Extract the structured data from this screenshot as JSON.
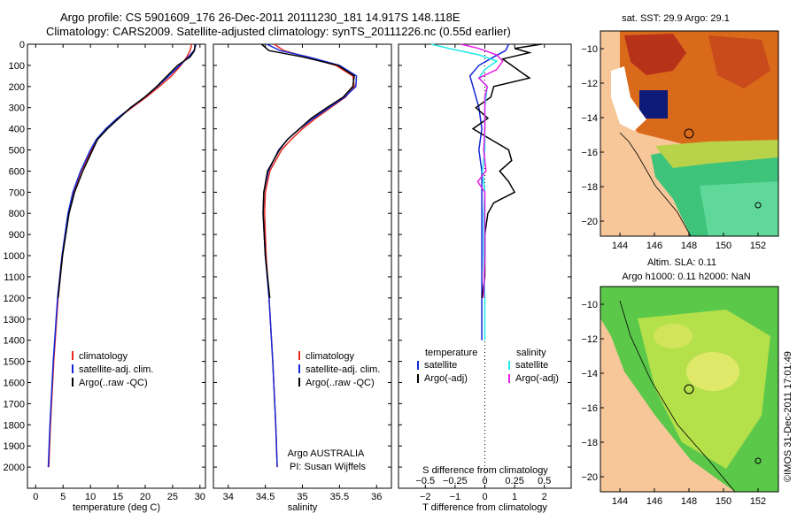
{
  "header": {
    "title_line1": "Argo profile: CS 5901609_176 26-Dec-2011 20111230_181 14.917S 148.118E",
    "title_line2": "Climatology: CARS2009. Satellite-adjusted climatology: synTS_20111226.nc (0.55d earlier)"
  },
  "colors": {
    "climatology": "#e8281e",
    "satellite": "#1428d8",
    "argo": "#000000",
    "sal_satellite": "#1ee8e8",
    "sal_argo": "#e81ee8",
    "land": "#f7c79a",
    "map_frame": "#000000"
  },
  "chart_data": [
    {
      "id": "temperature",
      "type": "line",
      "xlabel": "temperature (deg C)",
      "xlim": [
        -1.5,
        31
      ],
      "xticks": [
        "0",
        "5",
        "10",
        "15",
        "20",
        "25",
        "30"
      ],
      "ylim": [
        0,
        2100
      ],
      "yticks": [
        "0",
        "100",
        "200",
        "300",
        "400",
        "500",
        "600",
        "700",
        "800",
        "900",
        "1000",
        "1100",
        "1200",
        "1300",
        "1400",
        "1500",
        "1600",
        "1700",
        "1800",
        "1900",
        "2000"
      ],
      "legend": [
        "climatology",
        "satellite-adj. clim.",
        "Argo(..raw -QC)"
      ],
      "series": [
        {
          "name": "climatology",
          "depth": [
            0,
            30,
            60,
            100,
            150,
            200,
            250,
            300,
            350,
            400,
            450,
            500,
            600,
            700,
            800,
            1000,
            1200,
            1500,
            1800,
            2000
          ],
          "values": [
            28.5,
            28.2,
            27.6,
            26.5,
            24.8,
            22.6,
            20.2,
            17.6,
            15.0,
            12.9,
            11.2,
            10.2,
            8.3,
            6.9,
            6.0,
            4.9,
            4.1,
            3.3,
            2.7,
            2.4
          ]
        },
        {
          "name": "satellite-adj. clim.",
          "depth": [
            0,
            30,
            60,
            100,
            150,
            200,
            250,
            300,
            350,
            400,
            450,
            500,
            600,
            700,
            800,
            1000,
            1200,
            1500,
            1800,
            2000
          ],
          "values": [
            29.3,
            28.9,
            27.9,
            26.3,
            24.3,
            22.2,
            19.9,
            17.4,
            14.9,
            12.8,
            11.1,
            10.0,
            8.2,
            6.8,
            5.9,
            4.8,
            4.0,
            3.2,
            2.6,
            2.3
          ]
        },
        {
          "name": "Argo(..raw -QC)",
          "depth": [
            0,
            30,
            60,
            100,
            150,
            200,
            250,
            300,
            350,
            400,
            450,
            500,
            600,
            700,
            800,
            1000,
            1200
          ],
          "values": [
            29.1,
            29.0,
            28.2,
            25.9,
            24.0,
            22.1,
            19.9,
            17.3,
            15.2,
            13.1,
            11.3,
            10.4,
            8.6,
            7.1,
            6.1,
            4.9,
            4.1
          ]
        }
      ]
    },
    {
      "id": "salinity",
      "type": "line",
      "xlabel": "salinity",
      "xlim": [
        33.8,
        36.2
      ],
      "xticks": [
        "34",
        "34.5",
        "35",
        "35.5",
        "36"
      ],
      "ylim": [
        0,
        2100
      ],
      "legend": [
        "climatology",
        "satellite-adj. clim.",
        "Argo(..raw -QC)"
      ],
      "annotation_line1": "Argo AUSTRALIA",
      "annotation_line2": "PI: Susan Wijffels",
      "series": [
        {
          "name": "climatology",
          "depth": [
            0,
            30,
            60,
            100,
            150,
            200,
            250,
            300,
            350,
            400,
            450,
            500,
            600,
            700,
            800,
            1000,
            1200,
            1500,
            1800,
            2000
          ],
          "values": [
            34.62,
            34.75,
            35.05,
            35.45,
            35.68,
            35.7,
            35.58,
            35.38,
            35.18,
            35.0,
            34.85,
            34.72,
            34.56,
            34.5,
            34.49,
            34.51,
            34.55,
            34.6,
            34.64,
            34.66
          ]
        },
        {
          "name": "satellite-adj. clim.",
          "depth": [
            0,
            30,
            60,
            100,
            150,
            200,
            250,
            300,
            350,
            400,
            450,
            500,
            600,
            700,
            800,
            1000,
            1200,
            1500,
            1800,
            2000
          ],
          "values": [
            34.52,
            34.7,
            35.08,
            35.5,
            35.73,
            35.72,
            35.57,
            35.36,
            35.15,
            34.96,
            34.8,
            34.68,
            34.54,
            34.48,
            34.47,
            34.5,
            34.55,
            34.6,
            34.64,
            34.66
          ]
        },
        {
          "name": "Argo(..raw -QC)",
          "depth": [
            0,
            30,
            60,
            100,
            150,
            200,
            250,
            300,
            350,
            400,
            450,
            500,
            600,
            700,
            800,
            1000,
            1200
          ],
          "values": [
            34.45,
            34.55,
            35.0,
            35.48,
            35.7,
            35.68,
            35.55,
            35.33,
            35.12,
            34.96,
            34.8,
            34.69,
            34.53,
            34.48,
            34.47,
            34.5,
            34.56
          ]
        }
      ]
    },
    {
      "id": "difference",
      "type": "line",
      "xlabel": "T difference from climatology",
      "xlabel_top": "S difference from climatology",
      "xlim": [
        -2.9,
        2.9
      ],
      "xticks": [
        "-2",
        "-1",
        "0",
        "1",
        "2"
      ],
      "xticks_s": [
        "-0.5",
        "-0.25",
        "0",
        "0.25",
        "0.5"
      ],
      "ylim": [
        0,
        2100
      ],
      "legend_temperature_title": "temperature",
      "legend_salinity_title": "salinity",
      "legend_satellite": "satellite",
      "legend_argo": "Argo(-adj)",
      "series": [
        {
          "name": "satellite",
          "var": "T",
          "depth": [
            0,
            30,
            60,
            100,
            150,
            200,
            300,
            400,
            500,
            600,
            700,
            800,
            1000,
            1200,
            1400
          ],
          "values": [
            0.8,
            0.7,
            0.3,
            -0.2,
            -0.5,
            -0.4,
            -0.2,
            -0.1,
            -0.2,
            -0.1,
            -0.1,
            -0.1,
            -0.1,
            -0.1,
            -0.1
          ]
        },
        {
          "name": "Argo(-adj)",
          "var": "T",
          "depth": [
            0,
            20,
            40,
            70,
            100,
            130,
            160,
            200,
            250,
            300,
            350,
            400,
            450,
            500,
            550,
            600,
            650,
            700,
            750,
            800,
            900,
            1000,
            1100,
            1200
          ],
          "values": [
            1.9,
            1.0,
            1.5,
            0.6,
            0.9,
            1.2,
            1.5,
            0.3,
            0.2,
            -0.3,
            0.1,
            -0.4,
            0.2,
            0.8,
            0.9,
            0.5,
            0.8,
            1.0,
            0.3,
            0.1,
            0.0,
            0.0,
            0.0,
            -0.1
          ]
        },
        {
          "name": "satellite",
          "var": "S",
          "depth": [
            0,
            20,
            50,
            80,
            120,
            160,
            200,
            300,
            400,
            500,
            600,
            700,
            800,
            1000,
            1200,
            1400
          ],
          "values": [
            -0.45,
            -0.3,
            -0.05,
            0.1,
            0.0,
            -0.05,
            0.02,
            0.0,
            0.0,
            0.0,
            -0.02,
            0.0,
            -0.01,
            -0.01,
            0.0,
            0.0
          ]
        },
        {
          "name": "Argo(-adj)",
          "var": "S",
          "depth": [
            0,
            20,
            50,
            80,
            120,
            160,
            200,
            250,
            300,
            400,
            500,
            600,
            650,
            700,
            800,
            900,
            1000,
            1200
          ],
          "values": [
            -0.2,
            -0.05,
            0.1,
            0.15,
            0.1,
            -0.05,
            0.02,
            0.0,
            0.0,
            0.0,
            -0.01,
            0.01,
            -0.06,
            0.0,
            0.0,
            0.0,
            0.0,
            -0.01
          ]
        }
      ]
    },
    {
      "id": "sst_map",
      "type": "heatmap",
      "title": "sat. SST: 29.9 Argo: 29.1",
      "xticks": [
        "144",
        "146",
        "148",
        "150",
        "152"
      ],
      "yticks": [
        "-10",
        "-12",
        "-14",
        "-16",
        "-18",
        "-20"
      ]
    },
    {
      "id": "sla_map",
      "type": "heatmap",
      "title_line1": "Altim. SLA: 0.11",
      "title_line2": "Argo h1000: 0.11 h2000: NaN",
      "xticks": [
        "144",
        "146",
        "148",
        "150",
        "152"
      ],
      "yticks": [
        "-10",
        "-12",
        "-14",
        "-16",
        "-18",
        "-20"
      ]
    }
  ],
  "footer": {
    "credit": "©IMOS 31-Dec-2011 17:01:49"
  }
}
